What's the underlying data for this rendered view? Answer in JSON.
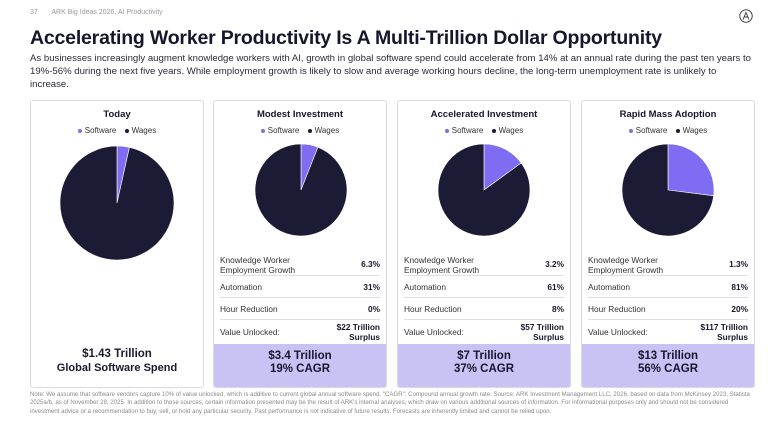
{
  "header": {
    "page_number": "37",
    "source_label": "ARK Big Ideas 2026, AI Productivity"
  },
  "title": "Accelerating Worker Productivity Is A Multi-Trillion Dollar Opportunity",
  "subtitle": "As businesses increasingly augment knowledge workers with AI, growth in global software spend could accelerate from 14% at an annual rate during the past ten years to 19%-56% during the next five years. While employment growth is likely to slow and average working hours decline, the long-term unemployment rate is unlikely to increase.",
  "colors": {
    "software": "#7e6cf2",
    "wages": "#1b1b35",
    "footer_bg": "#c9c2f5"
  },
  "legend": {
    "software": "Software",
    "wages": "Wages"
  },
  "chart_data": [
    {
      "type": "pie",
      "title": "Today",
      "labels": [
        "Software",
        "Wages"
      ],
      "values": [
        3.5,
        96.5
      ]
    },
    {
      "type": "pie",
      "title": "Modest Investment",
      "labels": [
        "Software",
        "Wages"
      ],
      "values": [
        6,
        94
      ]
    },
    {
      "type": "pie",
      "title": "Accelerated Investment",
      "labels": [
        "Software",
        "Wages"
      ],
      "values": [
        15,
        85
      ]
    },
    {
      "type": "pie",
      "title": "Rapid Mass Adoption",
      "labels": [
        "Software",
        "Wages"
      ],
      "values": [
        27,
        73
      ]
    }
  ],
  "panels": [
    {
      "title": "Today",
      "footer_line1": "$1.43 Trillion",
      "footer_line2": "Global Software Spend"
    },
    {
      "title": "Modest Investment",
      "metrics": [
        {
          "label": "Knowledge Worker Employment Growth",
          "value": "6.3%"
        },
        {
          "label": "Automation",
          "value": "31%"
        },
        {
          "label": "Hour Reduction",
          "value": "0%"
        },
        {
          "label": "Value Unlocked:",
          "value": "$22 Trillion Surplus"
        }
      ],
      "footer_line1": "$3.4 Trillion",
      "footer_line2": "19% CAGR"
    },
    {
      "title": "Accelerated Investment",
      "metrics": [
        {
          "label": "Knowledge Worker Employment Growth",
          "value": "3.2%"
        },
        {
          "label": "Automation",
          "value": "61%"
        },
        {
          "label": "Hour Reduction",
          "value": "8%"
        },
        {
          "label": "Value Unlocked:",
          "value": "$57 Trillion Surplus"
        }
      ],
      "footer_line1": "$7 Trillion",
      "footer_line2": "37% CAGR"
    },
    {
      "title": "Rapid Mass Adoption",
      "metrics": [
        {
          "label": "Knowledge Worker Employment Growth",
          "value": "1.3%"
        },
        {
          "label": "Automation",
          "value": "81%"
        },
        {
          "label": "Hour Reduction",
          "value": "20%"
        },
        {
          "label": "Value Unlocked:",
          "value": "$117 Trillion Surplus"
        }
      ],
      "footer_line1": "$13 Trillion",
      "footer_line2": "56% CAGR"
    }
  ],
  "note": "Note: We assume that software vendors capture 10% of value unlocked, which is additive to current global annual software spend. \"CAGR\": Compound annual growth rate. Source: ARK Investment Management LLC, 2026, based on data from McKinsey 2023, Statista 2025a/b, as of November 28, 2025. In addition to those sources, certain information presented may be the result of ARK's internal analyses, which draw on various additional sources of information. For informational purposes only and should not be considered investment advice or a recommendation to buy, sell, or hold any particular security. Past performance is not indicative of future results. Forecasts are inherently limited and cannot be relied upon."
}
